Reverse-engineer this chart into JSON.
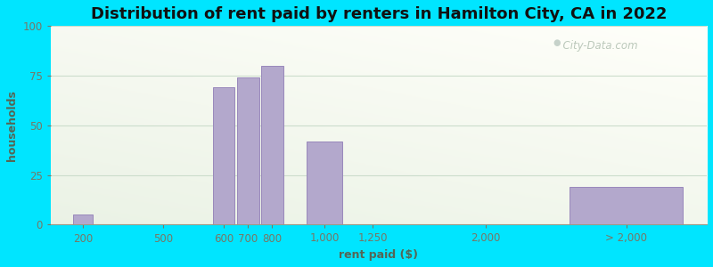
{
  "title": "Distribution of rent paid by renters in Hamilton City, CA in 2022",
  "xlabel": "rent paid ($)",
  "ylabel": "households",
  "bar_labels": [
    "200",
    "500",
    "600",
    "700",
    "800",
    "1,000",
    "1,250",
    "2,000",
    "> 2,000"
  ],
  "bar_values": [
    5,
    0,
    69,
    74,
    80,
    42,
    0,
    0,
    19
  ],
  "bar_color": "#b3a8cc",
  "bar_edge_color": "#9988bb",
  "ylim": [
    0,
    100
  ],
  "yticks": [
    0,
    25,
    50,
    75,
    100
  ],
  "bg_color": "#e8f4e4",
  "outer_bg": "#00e5ff",
  "grid_color": "#d8e8d0",
  "title_fontsize": 13,
  "axis_label_fontsize": 9,
  "tick_fontsize": 8.5,
  "watermark": "City-Data.com"
}
